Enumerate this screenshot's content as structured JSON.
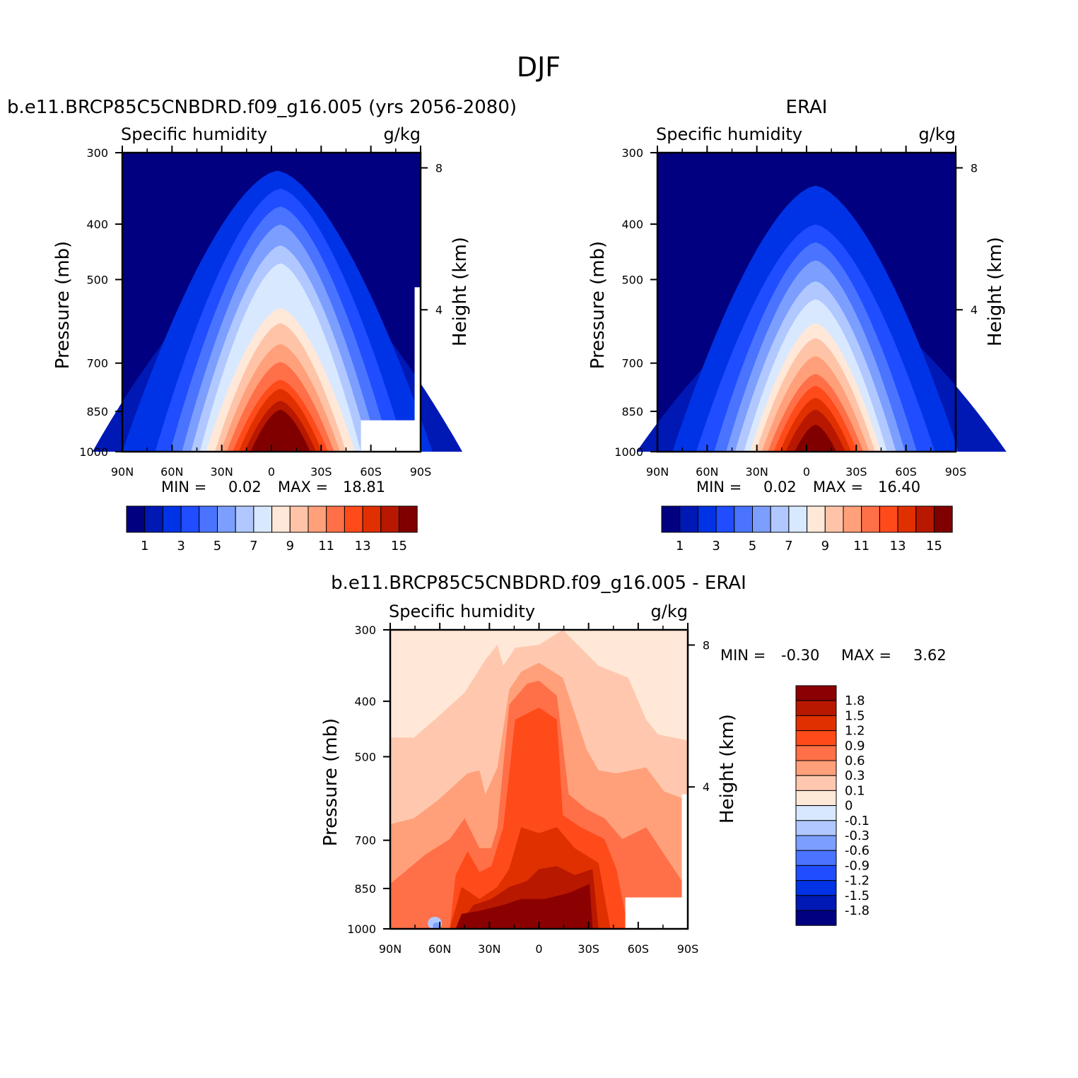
{
  "figure": {
    "title": "DJF"
  },
  "panels": [
    {
      "id": "model",
      "case_title": "b.e11.BRCP85C5CNBDRD.f09_g16.005 (yrs 2056-2080)",
      "variable": "Specific humidity",
      "units": "g/kg",
      "ylabel": "Pressure (mb)",
      "y2label": "Height (km)",
      "min_label": "MIN =",
      "min_value": "0.02",
      "max_label": "MAX =",
      "max_value": "18.81"
    },
    {
      "id": "obs",
      "case_title": "ERAI",
      "variable": "Specific humidity",
      "units": "g/kg",
      "ylabel": "Pressure (mb)",
      "y2label": "Height (km)",
      "min_label": "MIN =",
      "min_value": "0.02",
      "max_label": "MAX =",
      "max_value": "16.40"
    },
    {
      "id": "diff",
      "case_title": "b.e11.BRCP85C5CNBDRD.f09_g16.005 - ERAI",
      "variable": "Specific humidity",
      "units": "g/kg",
      "ylabel": "Pressure (mb)",
      "y2label": "Height (km)",
      "min_label": "MIN =",
      "min_value": "-0.30",
      "max_label": "MAX =",
      "max_value": "3.62"
    }
  ],
  "chart_data": [
    {
      "type": "heatmap",
      "panel": "model",
      "title": "b.e11.BRCP85C5CNBDRD.f09_g16.005 (yrs 2056-2080)",
      "subtitle": "Specific humidity",
      "units": "g/kg",
      "xlabel": "",
      "ylabel": "Pressure (mb)",
      "y2label": "Height (km)",
      "x_ticks": [
        "90N",
        "60N",
        "30N",
        "0",
        "30S",
        "60S",
        "90S"
      ],
      "x_tick_values": [
        90,
        60,
        30,
        0,
        -30,
        -60,
        -90
      ],
      "y_ticks": [
        300,
        400,
        500,
        700,
        850,
        1000
      ],
      "y_scale": "log",
      "ylim": [
        1000,
        300
      ],
      "y2_ticks": [
        4,
        8
      ],
      "min": 0.02,
      "max": 18.81,
      "contour_levels": [
        1,
        2,
        3,
        4,
        5,
        6,
        7,
        8,
        9,
        10,
        11,
        12,
        13,
        14,
        15
      ],
      "colorbar_labels": [
        "1",
        "3",
        "5",
        "7",
        "9",
        "11",
        "13",
        "15"
      ]
    },
    {
      "type": "heatmap",
      "panel": "obs",
      "title": "ERAI",
      "subtitle": "Specific humidity",
      "units": "g/kg",
      "xlabel": "",
      "ylabel": "Pressure (mb)",
      "y2label": "Height (km)",
      "x_ticks": [
        "90N",
        "60N",
        "30N",
        "0",
        "30S",
        "60S",
        "90S"
      ],
      "x_tick_values": [
        90,
        60,
        30,
        0,
        -30,
        -60,
        -90
      ],
      "y_ticks": [
        300,
        400,
        500,
        700,
        850,
        1000
      ],
      "y_scale": "log",
      "ylim": [
        1000,
        300
      ],
      "y2_ticks": [
        4,
        8
      ],
      "min": 0.02,
      "max": 16.4,
      "contour_levels": [
        1,
        2,
        3,
        4,
        5,
        6,
        7,
        8,
        9,
        10,
        11,
        12,
        13,
        14,
        15
      ],
      "colorbar_labels": [
        "1",
        "3",
        "5",
        "7",
        "9",
        "11",
        "13",
        "15"
      ]
    },
    {
      "type": "heatmap",
      "panel": "diff",
      "title": "b.e11.BRCP85C5CNBDRD.f09_g16.005 - ERAI",
      "subtitle": "Specific humidity",
      "units": "g/kg",
      "xlabel": "",
      "ylabel": "Pressure (mb)",
      "y2label": "Height (km)",
      "x_ticks": [
        "90N",
        "60N",
        "30N",
        "0",
        "30S",
        "60S",
        "90S"
      ],
      "x_tick_values": [
        90,
        60,
        30,
        0,
        -30,
        -60,
        -90
      ],
      "y_ticks": [
        300,
        400,
        500,
        700,
        850,
        1000
      ],
      "y_scale": "log",
      "ylim": [
        1000,
        300
      ],
      "y2_ticks": [
        4,
        8
      ],
      "min": -0.3,
      "max": 3.62,
      "contour_levels": [
        -1.8,
        -1.5,
        -1.2,
        -0.9,
        -0.6,
        -0.3,
        -0.1,
        0,
        0.1,
        0.3,
        0.6,
        0.9,
        1.2,
        1.5,
        1.8
      ],
      "colorbar_labels": [
        "1.8",
        "1.5",
        "1.2",
        "0.9",
        "0.6",
        "0.3",
        "0.1",
        "0",
        "-0.1",
        "-0.3",
        "-0.6",
        "-0.9",
        "-1.2",
        "-1.5",
        "-1.8"
      ]
    }
  ],
  "colors": {
    "sequential": [
      "#000080",
      "#0019b4",
      "#0033e6",
      "#1f4dff",
      "#4a74ff",
      "#7c9eff",
      "#b0c8ff",
      "#d8e8ff",
      "#ffe8d8",
      "#ffc4a8",
      "#ffa07a",
      "#ff7048",
      "#ff4a1a",
      "#e03000",
      "#b81800",
      "#800000"
    ],
    "diff_top_to_bottom": [
      "#8b0000",
      "#b81800",
      "#e03000",
      "#ff4a1a",
      "#ff7048",
      "#ffa07a",
      "#ffc8ae",
      "#ffe8d8",
      "#d8e8ff",
      "#b0c8ff",
      "#7c9eff",
      "#4a74ff",
      "#1f4dff",
      "#0033e6",
      "#0019b4",
      "#000080"
    ]
  }
}
